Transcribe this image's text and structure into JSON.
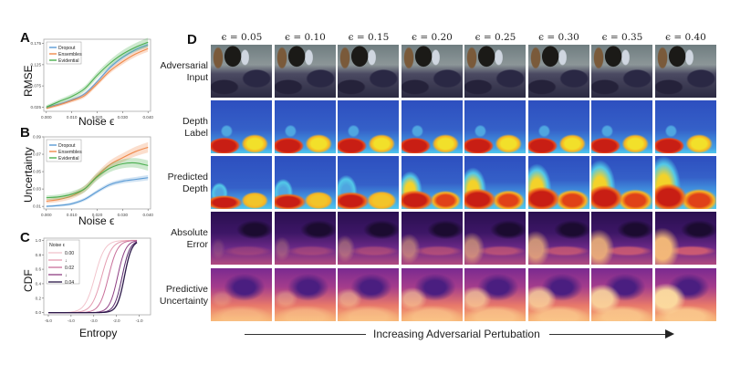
{
  "figure": {
    "panels": {
      "A": "A",
      "B": "B",
      "C": "C",
      "D": "D"
    }
  },
  "chart_data": [
    {
      "id": "A",
      "type": "line",
      "title": "",
      "xlabel": "Noise ϵ",
      "ylabel": "RMSE",
      "x": [
        0.0,
        0.005,
        0.01,
        0.015,
        0.02,
        0.025,
        0.03,
        0.035,
        0.04
      ],
      "xlim": [
        -0.001,
        0.041
      ],
      "ylim": [
        0.015,
        0.185
      ],
      "xticks": [
        "0.000",
        "0.010",
        "0.020",
        "0.030",
        "0.040"
      ],
      "xtick_values": [
        0.0,
        0.01,
        0.02,
        0.03,
        0.04
      ],
      "yticks": [
        "0.025",
        "0.075",
        "0.125",
        "0.175"
      ],
      "ytick_values": [
        0.025,
        0.075,
        0.125,
        0.175
      ],
      "legend": "top-left",
      "grid": false,
      "series": [
        {
          "name": "Dropout",
          "color": "#5b9bd5",
          "values": [
            0.025,
            0.032,
            0.042,
            0.056,
            0.085,
            0.118,
            0.142,
            0.16,
            0.172
          ],
          "band": 0.004
        },
        {
          "name": "Ensembles",
          "color": "#f08a4b",
          "values": [
            0.022,
            0.03,
            0.04,
            0.052,
            0.08,
            0.11,
            0.132,
            0.15,
            0.163
          ],
          "band": 0.005
        },
        {
          "name": "Evidential",
          "color": "#4caf50",
          "values": [
            0.025,
            0.038,
            0.05,
            0.068,
            0.1,
            0.128,
            0.15,
            0.166,
            0.178
          ],
          "band": 0.007
        }
      ]
    },
    {
      "id": "B",
      "type": "line",
      "title": "",
      "xlabel": "Noise ϵ",
      "ylabel": "Uncertainty",
      "x": [
        0.0,
        0.005,
        0.01,
        0.015,
        0.02,
        0.025,
        0.03,
        0.035,
        0.04
      ],
      "xlim": [
        -0.001,
        0.041
      ],
      "ylim": [
        0.007,
        0.09
      ],
      "xticks": [
        "0.000",
        "0.010",
        "0.020",
        "0.030",
        "0.040"
      ],
      "xtick_values": [
        0.0,
        0.01,
        0.02,
        0.03,
        0.04
      ],
      "yticks": [
        "0.01",
        "0.03",
        "0.05",
        "0.07",
        "0.09"
      ],
      "ytick_values": [
        0.01,
        0.03,
        0.05,
        0.07,
        0.09
      ],
      "legend": "top-left",
      "grid": false,
      "series": [
        {
          "name": "Dropout",
          "color": "#5b9bd5",
          "values": [
            0.01,
            0.011,
            0.013,
            0.018,
            0.027,
            0.035,
            0.039,
            0.041,
            0.043
          ],
          "band": 0.002
        },
        {
          "name": "Ensembles",
          "color": "#f08a4b",
          "values": [
            0.016,
            0.018,
            0.022,
            0.03,
            0.045,
            0.058,
            0.066,
            0.073,
            0.078
          ],
          "band": 0.004
        },
        {
          "name": "Evidential",
          "color": "#4caf50",
          "values": [
            0.02,
            0.021,
            0.024,
            0.03,
            0.044,
            0.054,
            0.059,
            0.06,
            0.057
          ],
          "band": 0.004
        }
      ]
    },
    {
      "id": "C",
      "type": "line",
      "title": "",
      "xlabel": "Entropy",
      "ylabel": "CDF",
      "xlim": [
        -5.2,
        -0.5
      ],
      "ylim": [
        -0.03,
        1.03
      ],
      "xticks": [
        "-5.0",
        "-4.0",
        "-3.0",
        "-2.0",
        "-1.0"
      ],
      "xtick_values": [
        -5.0,
        -4.0,
        -3.0,
        -2.0,
        -1.0
      ],
      "yticks": [
        "0.0",
        "0.2",
        "0.4",
        "0.6",
        "0.8",
        "1.0"
      ],
      "ytick_values": [
        0.0,
        0.2,
        0.4,
        0.6,
        0.8,
        1.0
      ],
      "legend_title": "Noise ϵ",
      "legend_entries": [
        "0.00",
        "↓",
        "0.02",
        "↓",
        "0.04"
      ],
      "legend": "top-left",
      "grid": false,
      "series": [
        {
          "name": "0.00",
          "color": "#f2c4cc",
          "center": -2.95,
          "scale": 0.22
        },
        {
          "name": "0.01",
          "color": "#e49bb0",
          "center": -2.65,
          "scale": 0.22
        },
        {
          "name": "0.02",
          "color": "#c9709a",
          "center": -2.35,
          "scale": 0.2
        },
        {
          "name": "0.03",
          "color": "#8e3f83",
          "center": -1.95,
          "scale": 0.18
        },
        {
          "name": "0.035",
          "color": "#5a2a6e",
          "center": -1.75,
          "scale": 0.17
        },
        {
          "name": "0.04",
          "color": "#2b1848",
          "center": -1.65,
          "scale": 0.16
        }
      ]
    }
  ],
  "grid_panel": {
    "column_labels": [
      "ϵ = 0.05",
      "ϵ = 0.10",
      "ϵ = 0.15",
      "ϵ = 0.20",
      "ϵ = 0.25",
      "ϵ = 0.30",
      "ϵ = 0.35",
      "ϵ = 0.40"
    ],
    "row_labels": [
      "Adversarial\nInput",
      "Depth\nLabel",
      "Predicted\nDepth",
      "Absolute\nError",
      "Predictive\nUncertainty"
    ],
    "perturbation_levels": [
      0.05,
      0.1,
      0.15,
      0.2,
      0.25,
      0.3,
      0.35,
      0.4
    ],
    "axis_caption": "Increasing Adversarial Pertubation"
  }
}
